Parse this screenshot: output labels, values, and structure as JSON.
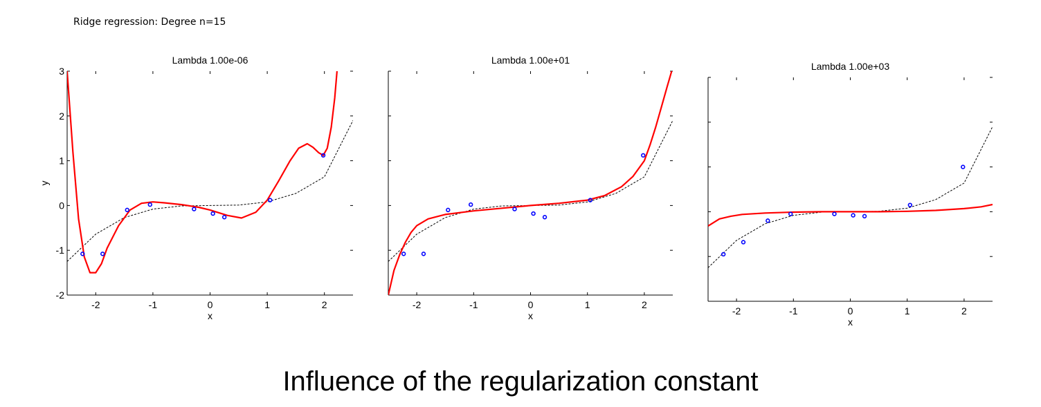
{
  "figure": {
    "suptitle": "Ridge regression: Degree n=15",
    "caption": "Influence of the regularization constant"
  },
  "colors": {
    "fit": "#ff0000",
    "truth": "#000000",
    "points": "#0000ff",
    "axis": "#000000"
  },
  "chart_data": [
    {
      "type": "line",
      "title": "Lambda 1.00e-06",
      "xlabel": "x",
      "ylabel": "y",
      "xlim": [
        -2.5,
        2.5
      ],
      "ylim": [
        -2,
        3
      ],
      "xticks": [
        -2,
        -1,
        0,
        1,
        2
      ],
      "yticks": [
        -2,
        -1,
        0,
        1,
        2,
        3
      ],
      "show_ytick_labels": true,
      "points": {
        "x": [
          -2.23,
          -1.88,
          -1.45,
          -1.05,
          -0.28,
          0.05,
          0.25,
          1.05,
          1.98
        ],
        "y": [
          -1.08,
          -1.08,
          -0.1,
          0.02,
          -0.08,
          -0.18,
          -0.26,
          0.12,
          1.12
        ]
      },
      "series": [
        {
          "style": "dashed",
          "x": [
            -2.5,
            -2.0,
            -1.5,
            -1.0,
            -0.5,
            0.0,
            0.5,
            1.0,
            1.5,
            2.0,
            2.5
          ],
          "y": [
            -1.25,
            -0.64,
            -0.27,
            -0.08,
            -0.01,
            0.0,
            0.01,
            0.08,
            0.27,
            0.64,
            1.9
          ]
        },
        {
          "style": "solid",
          "x": [
            -2.5,
            -2.4,
            -2.3,
            -2.2,
            -2.1,
            -2.0,
            -1.9,
            -1.8,
            -1.6,
            -1.4,
            -1.2,
            -1.0,
            -0.8,
            -0.5,
            -0.2,
            0.0,
            0.3,
            0.55,
            0.8,
            1.0,
            1.2,
            1.4,
            1.55,
            1.7,
            1.8,
            1.9,
            1.98,
            2.05,
            2.12,
            2.18,
            2.22
          ],
          "y": [
            3.0,
            1.2,
            -0.3,
            -1.15,
            -1.5,
            -1.5,
            -1.3,
            -0.95,
            -0.45,
            -0.1,
            0.05,
            0.08,
            0.06,
            0.02,
            -0.04,
            -0.1,
            -0.22,
            -0.28,
            -0.15,
            0.12,
            0.55,
            1.0,
            1.28,
            1.38,
            1.3,
            1.18,
            1.12,
            1.28,
            1.75,
            2.4,
            3.0
          ]
        }
      ]
    },
    {
      "type": "line",
      "title": "Lambda 1.00e+01",
      "xlabel": "x",
      "ylabel": "",
      "xlim": [
        -2.5,
        2.5
      ],
      "ylim": [
        -2,
        3
      ],
      "xticks": [
        -2,
        -1,
        0,
        1,
        2
      ],
      "yticks": [
        -2,
        -1,
        0,
        1,
        2,
        3
      ],
      "show_ytick_labels": false,
      "points": {
        "x": [
          -2.23,
          -1.88,
          -1.45,
          -1.05,
          -0.28,
          0.05,
          0.25,
          1.05,
          1.98
        ],
        "y": [
          -1.08,
          -1.08,
          -0.1,
          0.02,
          -0.08,
          -0.18,
          -0.26,
          0.12,
          1.12
        ]
      },
      "series": [
        {
          "style": "dashed",
          "x": [
            -2.5,
            -2.0,
            -1.5,
            -1.0,
            -0.5,
            0.0,
            0.5,
            1.0,
            1.5,
            2.0,
            2.5
          ],
          "y": [
            -1.25,
            -0.64,
            -0.27,
            -0.08,
            -0.01,
            0.0,
            0.01,
            0.08,
            0.27,
            0.64,
            1.9
          ]
        },
        {
          "style": "solid",
          "x": [
            -2.5,
            -2.4,
            -2.3,
            -2.2,
            -2.1,
            -2.0,
            -1.8,
            -1.5,
            -1.0,
            -0.5,
            0.0,
            0.5,
            1.0,
            1.3,
            1.6,
            1.8,
            2.0,
            2.1,
            2.2,
            2.3,
            2.4,
            2.48
          ],
          "y": [
            -2.0,
            -1.45,
            -1.1,
            -0.82,
            -0.6,
            -0.45,
            -0.3,
            -0.2,
            -0.12,
            -0.06,
            0.0,
            0.05,
            0.12,
            0.22,
            0.42,
            0.65,
            1.0,
            1.35,
            1.75,
            2.2,
            2.65,
            3.0
          ]
        }
      ]
    },
    {
      "type": "line",
      "title": "Lambda 1.00e+03",
      "xlabel": "x",
      "ylabel": "",
      "xlim": [
        -2.5,
        2.5
      ],
      "ylim": [
        -2,
        3
      ],
      "xticks": [
        -2,
        -1,
        0,
        1,
        2
      ],
      "yticks": [
        -2,
        -1,
        0,
        1,
        2,
        3
      ],
      "show_ytick_labels": false,
      "points": {
        "x": [
          -2.23,
          -1.88,
          -1.45,
          -1.05,
          -0.28,
          0.05,
          0.25,
          1.05,
          1.98
        ],
        "y": [
          -0.95,
          -0.68,
          -0.2,
          -0.05,
          -0.05,
          -0.08,
          -0.1,
          0.15,
          1.0
        ]
      },
      "series": [
        {
          "style": "dashed",
          "x": [
            -2.5,
            -2.0,
            -1.5,
            -1.0,
            -0.5,
            0.0,
            0.5,
            1.0,
            1.5,
            2.0,
            2.5
          ],
          "y": [
            -1.25,
            -0.64,
            -0.27,
            -0.08,
            -0.01,
            0.0,
            0.01,
            0.08,
            0.27,
            0.64,
            1.9
          ]
        },
        {
          "style": "solid",
          "x": [
            -2.5,
            -2.3,
            -2.1,
            -1.9,
            -1.5,
            -1.0,
            -0.5,
            0.0,
            0.5,
            1.0,
            1.5,
            2.0,
            2.3,
            2.5
          ],
          "y": [
            -0.32,
            -0.16,
            -0.1,
            -0.06,
            -0.03,
            -0.01,
            0.0,
            0.0,
            0.0,
            0.01,
            0.03,
            0.07,
            0.11,
            0.16
          ]
        }
      ]
    }
  ]
}
